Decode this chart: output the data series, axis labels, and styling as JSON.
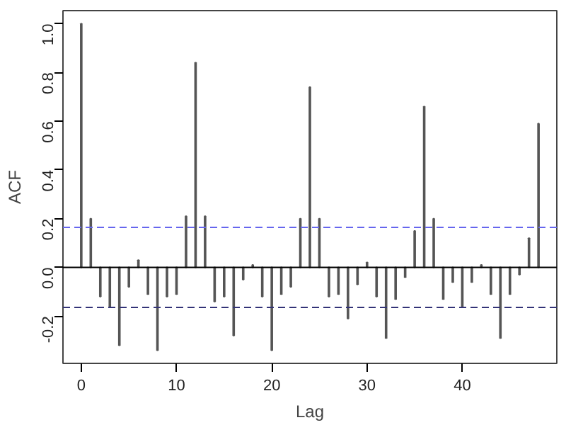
{
  "chart_data": {
    "type": "bar",
    "xlabel": "Lag",
    "ylabel": "ACF",
    "x": [
      0,
      1,
      2,
      3,
      4,
      5,
      6,
      7,
      8,
      9,
      10,
      11,
      12,
      13,
      14,
      15,
      16,
      17,
      18,
      19,
      20,
      21,
      22,
      23,
      24,
      25,
      26,
      27,
      28,
      29,
      30,
      31,
      32,
      33,
      34,
      35,
      36,
      37,
      38,
      39,
      40,
      41,
      42,
      43,
      44,
      45,
      46,
      47,
      48
    ],
    "series": [
      {
        "color": "#555555",
        "values": [
          1.0,
          0.2,
          -0.12,
          -0.16,
          -0.32,
          -0.08,
          0.03,
          -0.11,
          -0.34,
          -0.12,
          -0.11,
          0.21,
          0.84,
          0.21,
          -0.14,
          -0.12,
          -0.28,
          -0.05,
          0.01,
          -0.12,
          -0.34,
          -0.11,
          -0.08,
          0.2,
          0.74,
          0.2,
          -0.12,
          -0.11,
          -0.21,
          -0.07,
          0.02,
          -0.12,
          -0.29,
          -0.13,
          -0.04,
          0.15,
          0.66,
          0.2,
          -0.13,
          -0.06,
          -0.16,
          -0.06,
          0.01,
          -0.11,
          -0.29,
          -0.11,
          -0.03,
          0.12,
          0.59
        ]
      }
    ],
    "xlim": [
      -1.92,
      49.92
    ],
    "ylim": [
      -0.394,
      1.054
    ],
    "xticks": [
      0,
      10,
      20,
      30,
      40
    ],
    "yticks": [
      -0.2,
      {
        "value": 0,
        "label": "0.0"
      },
      0.2,
      0.4,
      0.6,
      0.8,
      {
        "value": 1,
        "label": "1.0"
      }
    ],
    "ref_lines": [
      {
        "axis": "y",
        "value": 0,
        "color": "#000000",
        "line_style": "solid"
      },
      {
        "axis": "y",
        "value": 0.164,
        "color": "#6666ee",
        "line_style": "dashed"
      },
      {
        "axis": "y",
        "value": -0.164,
        "color": "#333377",
        "line_style": "dashed"
      }
    ],
    "grid": false
  }
}
